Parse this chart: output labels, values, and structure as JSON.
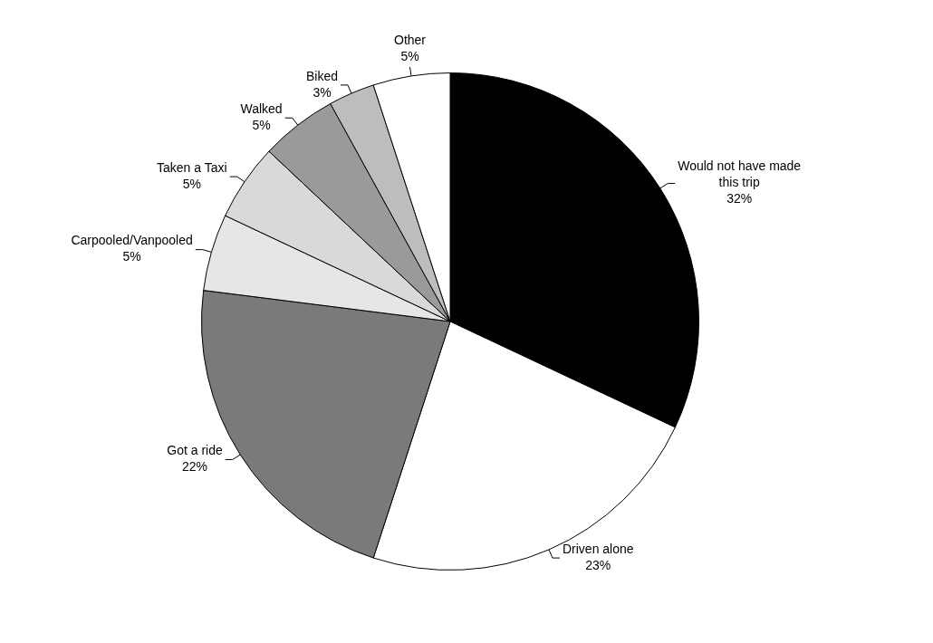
{
  "chart_data": {
    "type": "pie",
    "categories": [
      "Would not have made this trip",
      "Driven alone",
      "Got a ride",
      "Carpooled/Vanpooled",
      "Taken a Taxi",
      "Walked",
      "Biked",
      "Other"
    ],
    "values": [
      32,
      23,
      22,
      5,
      5,
      5,
      3,
      5
    ],
    "value_labels": [
      "32%",
      "23%",
      "22%",
      "5%",
      "5%",
      "5%",
      "3%",
      "5%"
    ],
    "colors": [
      "#000000",
      "#ffffff",
      "#7a7a7a",
      "#e6e6e6",
      "#d9d9d9",
      "#9a9a9a",
      "#bdbdbd",
      "#ffffff"
    ],
    "legend": false
  }
}
